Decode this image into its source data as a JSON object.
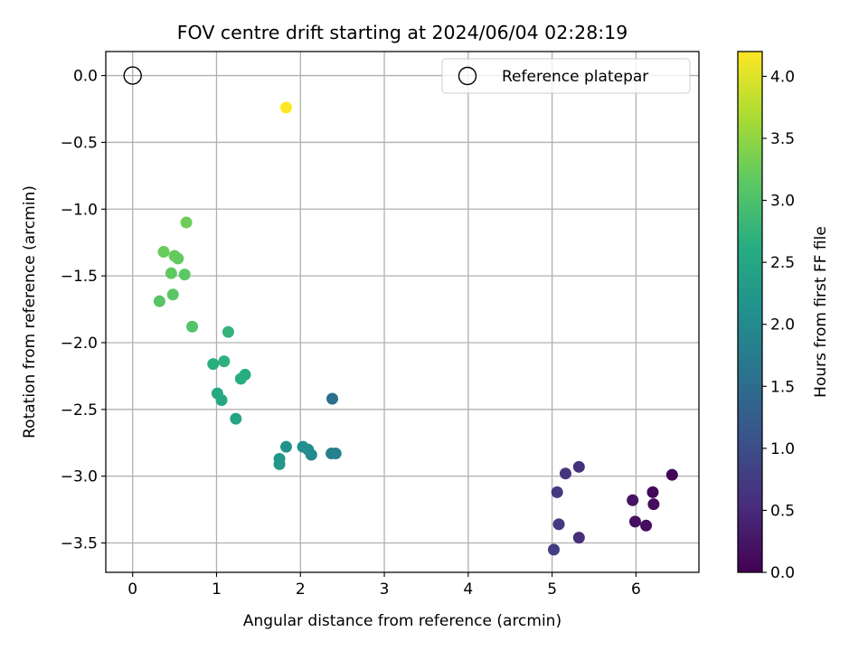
{
  "chart_data": {
    "type": "scatter",
    "title": "FOV centre drift starting at 2024/06/04 02:28:19",
    "xlabel": "Angular distance from reference (arcmin)",
    "ylabel": "Rotation from reference (arcmin)",
    "xlim": [
      -0.32,
      6.75
    ],
    "ylim": [
      -3.72,
      0.18
    ],
    "xticks": [
      0,
      1,
      2,
      3,
      4,
      5,
      6
    ],
    "yticks": [
      0.0,
      -0.5,
      -1.0,
      -1.5,
      -2.0,
      -2.5,
      -3.0,
      -3.5
    ],
    "ytick_labels": [
      "0.0",
      "−0.5",
      "−1.0",
      "−1.5",
      "−2.0",
      "−2.5",
      "−3.0",
      "−3.5"
    ],
    "grid": true,
    "reference": {
      "x": 0.0,
      "y": 0.0,
      "label": "Reference platepar"
    },
    "legend_placement": "top-right",
    "colormap": "viridis",
    "colorbar": {
      "label": "Hours from first FF file",
      "range": [
        0.0,
        4.2
      ],
      "ticks": [
        0.0,
        0.5,
        1.0,
        1.5,
        2.0,
        2.5,
        3.0,
        3.5,
        4.0
      ],
      "tick_labels": [
        "0.0",
        "0.5",
        "1.0",
        "1.5",
        "2.0",
        "2.5",
        "3.0",
        "3.5",
        "4.0"
      ]
    },
    "points": [
      {
        "x": 6.43,
        "y": -2.99,
        "hours": 0.05
      },
      {
        "x": 6.2,
        "y": -3.12,
        "hours": 0.08
      },
      {
        "x": 6.21,
        "y": -3.21,
        "hours": 0.12
      },
      {
        "x": 6.12,
        "y": -3.37,
        "hours": 0.15
      },
      {
        "x": 5.99,
        "y": -3.34,
        "hours": 0.18
      },
      {
        "x": 5.96,
        "y": -3.18,
        "hours": 0.22
      },
      {
        "x": 5.32,
        "y": -3.46,
        "hours": 0.55
      },
      {
        "x": 5.32,
        "y": -2.93,
        "hours": 0.6
      },
      {
        "x": 5.16,
        "y": -2.98,
        "hours": 0.65
      },
      {
        "x": 5.08,
        "y": -3.36,
        "hours": 0.7
      },
      {
        "x": 5.06,
        "y": -3.12,
        "hours": 0.72
      },
      {
        "x": 5.02,
        "y": -3.55,
        "hours": 0.78
      },
      {
        "x": 2.38,
        "y": -2.42,
        "hours": 1.55
      },
      {
        "x": 2.42,
        "y": -2.83,
        "hours": 1.8
      },
      {
        "x": 2.37,
        "y": -2.83,
        "hours": 1.85
      },
      {
        "x": 2.13,
        "y": -2.84,
        "hours": 2.0
      },
      {
        "x": 2.09,
        "y": -2.8,
        "hours": 2.05
      },
      {
        "x": 2.03,
        "y": -2.78,
        "hours": 2.08
      },
      {
        "x": 1.83,
        "y": -2.78,
        "hours": 2.15
      },
      {
        "x": 1.75,
        "y": -2.91,
        "hours": 2.22
      },
      {
        "x": 1.75,
        "y": -2.87,
        "hours": 2.25
      },
      {
        "x": 1.23,
        "y": -2.57,
        "hours": 2.45
      },
      {
        "x": 1.06,
        "y": -2.43,
        "hours": 2.52
      },
      {
        "x": 1.01,
        "y": -2.38,
        "hours": 2.55
      },
      {
        "x": 1.34,
        "y": -2.24,
        "hours": 2.6
      },
      {
        "x": 1.29,
        "y": -2.27,
        "hours": 2.62
      },
      {
        "x": 0.96,
        "y": -2.16,
        "hours": 2.65
      },
      {
        "x": 1.09,
        "y": -2.14,
        "hours": 2.7
      },
      {
        "x": 1.14,
        "y": -1.92,
        "hours": 2.75
      },
      {
        "x": 0.71,
        "y": -1.88,
        "hours": 3.05
      },
      {
        "x": 0.32,
        "y": -1.69,
        "hours": 3.1
      },
      {
        "x": 0.48,
        "y": -1.64,
        "hours": 3.12
      },
      {
        "x": 0.62,
        "y": -1.49,
        "hours": 3.15
      },
      {
        "x": 0.46,
        "y": -1.48,
        "hours": 3.17
      },
      {
        "x": 0.54,
        "y": -1.37,
        "hours": 3.19
      },
      {
        "x": 0.5,
        "y": -1.35,
        "hours": 3.21
      },
      {
        "x": 0.37,
        "y": -1.32,
        "hours": 3.23
      },
      {
        "x": 0.64,
        "y": -1.1,
        "hours": 3.27
      },
      {
        "x": 1.83,
        "y": -0.24,
        "hours": 4.2
      }
    ]
  }
}
